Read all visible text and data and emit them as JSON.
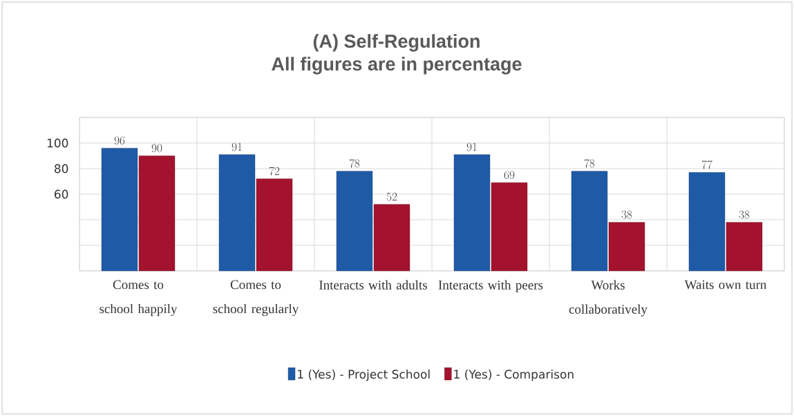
{
  "chart_data": {
    "type": "bar",
    "title": "(A) Self-Regulation",
    "subtitle": "All figures are in percentage",
    "categories": [
      "Comes to school happily",
      "Comes to school regularly",
      "Interacts with adults",
      "Interacts with peers",
      "Works collaboratively",
      "Waits own turn"
    ],
    "series": [
      {
        "name": "1 (Yes) - Project School",
        "color": "#1f5aa6",
        "values": [
          96,
          91,
          78,
          91,
          78,
          77
        ]
      },
      {
        "name": "1 (Yes) - Comparison",
        "color": "#a3132e",
        "values": [
          90,
          72,
          52,
          69,
          38,
          38
        ]
      }
    ],
    "ylim": [
      0,
      120
    ],
    "yticks": [
      {
        "value": 0,
        "label": null
      },
      {
        "value": 20,
        "label": null
      },
      {
        "value": 40,
        "label": null
      },
      60,
      80,
      100,
      {
        "value": 120,
        "label": null
      }
    ],
    "grid": true,
    "legend": "bottom",
    "data_labels": true
  }
}
